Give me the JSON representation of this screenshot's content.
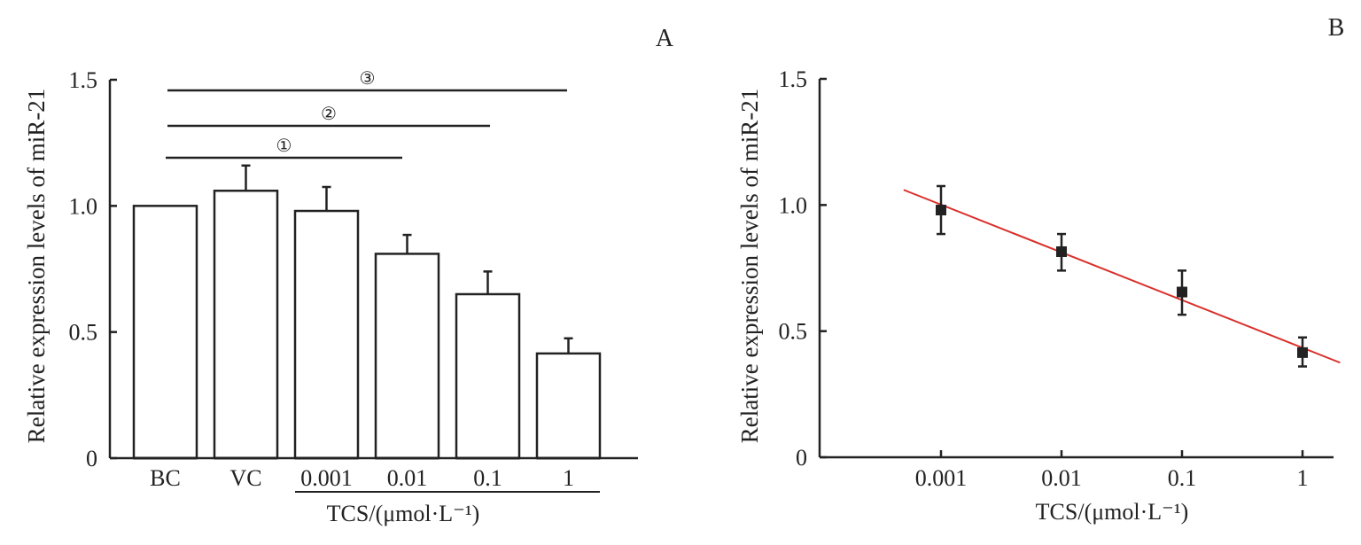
{
  "chart_data": [
    {
      "type": "bar",
      "panel_label": "A",
      "categories": [
        "BC",
        "VC",
        "0.001",
        "0.01",
        "0.1",
        "1"
      ],
      "values": [
        1.0,
        1.06,
        0.98,
        0.81,
        0.65,
        0.415
      ],
      "error_upper": [
        null,
        1.16,
        1.075,
        0.885,
        0.74,
        0.475
      ],
      "ylabel": "Relative expression levels of miR-21",
      "xlabel": "TCS/(μmol·L⁻¹)",
      "ylim": [
        0,
        1.5
      ],
      "yticks": [
        "0",
        "0.5",
        "1.0",
        "1.5"
      ],
      "ytick_values": [
        0,
        0.5,
        1.0,
        1.5
      ],
      "grid": false,
      "significance": [
        {
          "label": "①",
          "from": "BC",
          "to": "0.01"
        },
        {
          "label": "②",
          "from": "BC",
          "to": "0.1"
        },
        {
          "label": "③",
          "from": "BC",
          "to": "1"
        }
      ],
      "bar_color": "#ffffff",
      "edge_color": "#222222"
    },
    {
      "type": "scatter",
      "panel_label": "B",
      "x": [
        0.001,
        0.01,
        0.1,
        1
      ],
      "xticks": [
        "0.001",
        "0.01",
        "0.1",
        "1"
      ],
      "y": [
        0.98,
        0.815,
        0.655,
        0.415
      ],
      "error_low": [
        0.885,
        0.74,
        0.565,
        0.36
      ],
      "error_high": [
        1.075,
        0.885,
        0.74,
        0.475
      ],
      "fit_line": {
        "x_start": 0.00049,
        "y_start": 1.06,
        "x_end": 2.05,
        "y_end": 0.375,
        "color": "#d9302b"
      },
      "xscale": "log",
      "ylabel": "Relative expression levels of miR-21",
      "xlabel": "TCS/(μmol·L⁻¹)",
      "ylim": [
        0,
        1.5
      ],
      "yticks": [
        "0",
        "0.5",
        "1.0",
        "1.5"
      ],
      "ytick_values": [
        0,
        0.5,
        1.0,
        1.5
      ],
      "grid": false,
      "marker_color": "#222222"
    }
  ]
}
